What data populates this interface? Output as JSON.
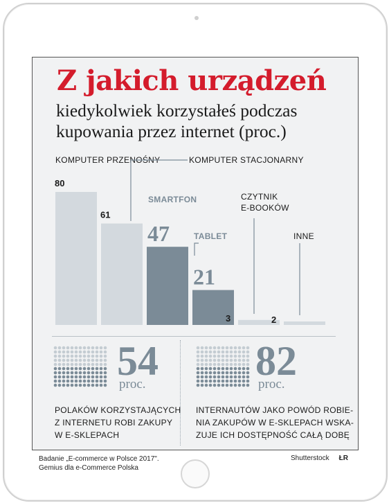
{
  "title": "Z jakich urządzeń",
  "subtitle_line1": "kiedykolwiek korzystałeś podczas",
  "subtitle_line2": "kupowania przez internet (proc.)",
  "chart_data": {
    "type": "bar",
    "title": "Z jakich urządzeń kiedykolwiek korzystałeś podczas kupowania przez internet (proc.)",
    "categories": [
      "KOMPUTER PRZENOŚNY",
      "KOMPUTER STACJONARNY",
      "SMARTFON",
      "TABLET",
      "CZYTNIK E-BOOKÓW",
      "INNE"
    ],
    "values": [
      80,
      61,
      47,
      21,
      3,
      2
    ],
    "value_labels": [
      "80",
      "61",
      "47",
      "21",
      "3",
      "2"
    ],
    "ylim": [
      0,
      80
    ],
    "xlabel": "",
    "ylabel": "",
    "colors": [
      "#d3d9de",
      "#d3d9de",
      "#7b8b97",
      "#7b8b97",
      "#d3d9de",
      "#d3d9de"
    ],
    "grid": false,
    "legend": "none"
  },
  "stats": [
    {
      "value": "54",
      "unit": "proc.",
      "text": [
        "POLAKÓW KORZYSTAJĄCYCH",
        "Z INTERNETU ROBI ZAKUPY",
        "W E-SKLEPACH"
      ]
    },
    {
      "value": "82",
      "unit": "proc.",
      "text": [
        "INTERNAUTÓW JAKO POWÓD ROBIE-",
        "NIA ZAKUPÓW W E-SKLEPACH WSKA-",
        "ZUJE ICH DOSTĘPNOŚĆ CAŁĄ DOBĘ"
      ]
    }
  ],
  "footer": {
    "source_line1": "Badanie „E-commerce w Polsce 2017\".",
    "source_line2": "Gemius dla e-Commerce Polska",
    "credit": "Shutterstock",
    "logo": "ŁR"
  },
  "colors": {
    "title": "#d41c2c",
    "bar_light": "#d3d9de",
    "bar_dark": "#7b8b97",
    "background": "#f1f2f3"
  }
}
